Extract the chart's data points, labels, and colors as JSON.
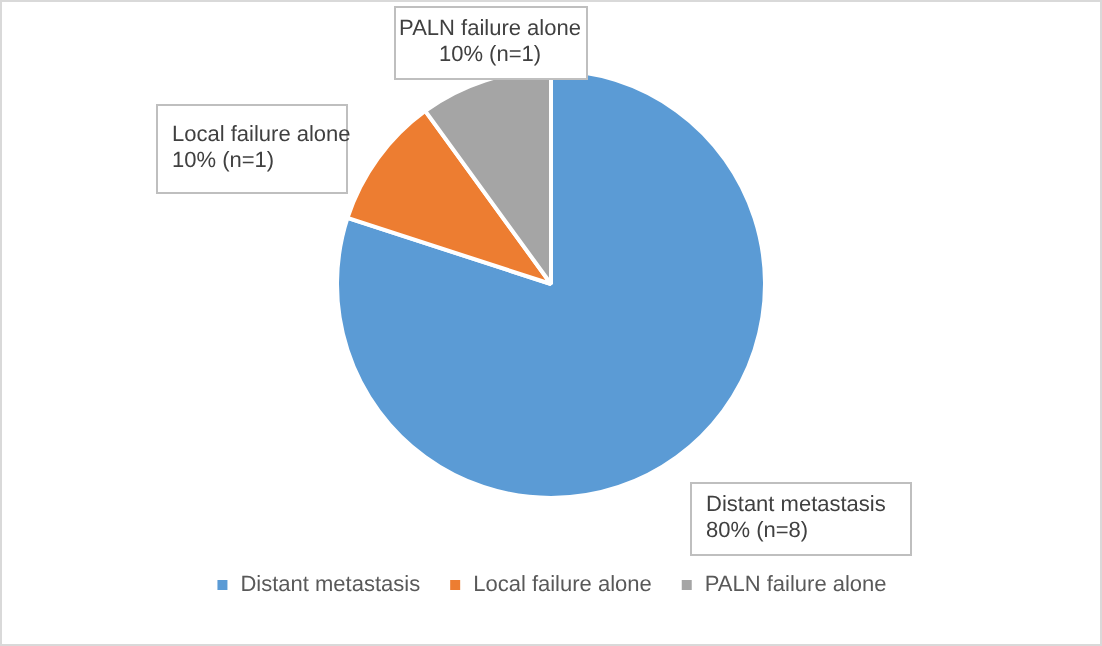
{
  "chart_data": {
    "type": "pie",
    "categories": [
      "Distant metastasis",
      "Local failure alone",
      "PALN failure alone"
    ],
    "values": [
      80,
      10,
      10
    ],
    "colors": [
      "#5b9bd5",
      "#ed7d31",
      "#a5a5a5"
    ],
    "value_labels": [
      "80% (n=8)",
      "10% (n=1)",
      "10% (n=1)"
    ],
    "legend": "bottom"
  }
}
